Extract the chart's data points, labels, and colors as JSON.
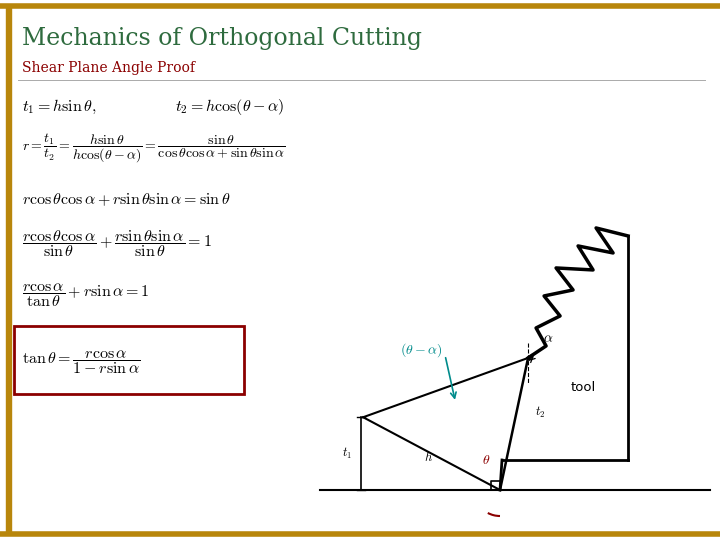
{
  "title": "Mechanics of Orthogonal Cutting",
  "subtitle": "Shear Plane Angle Proof",
  "title_color": "#2E6B3E",
  "subtitle_color": "#8B0000",
  "border_color": "#B8860B",
  "box_color": "#8B0000",
  "bg_color": "#FFFFFF",
  "formula_color": "#000000",
  "teal_color": "#008B8B",
  "maroon_color": "#8B0000",
  "eq1a": "$t_1 = h\\sin\\theta,$",
  "eq1b": "$t_2 = h\\cos(\\theta - \\alpha)$",
  "eq2": "$r = \\dfrac{t_1}{t_2} = \\dfrac{h\\sin\\theta}{h\\cos(\\theta-\\alpha)} = \\dfrac{\\sin\\theta}{\\cos\\theta\\cos\\alpha + \\sin\\theta\\sin\\alpha}$",
  "eq3": "$r\\cos\\theta\\cos\\alpha + r\\sin\\theta\\sin\\alpha = \\sin\\theta$",
  "eq4": "$\\dfrac{r\\cos\\theta\\cos\\alpha}{\\sin\\theta} + \\dfrac{r\\sin\\theta\\sin\\alpha}{\\sin\\theta} = 1$",
  "eq5": "$\\dfrac{r\\cos\\alpha}{\\tan\\theta} + r\\sin\\alpha = 1$",
  "eq6": "$\\tan\\theta = \\dfrac{r\\cos\\alpha}{1 - r\\sin\\alpha}$",
  "label_theta_alpha": "$(\\theta - \\alpha)$",
  "label_theta": "$\\theta$",
  "label_alpha": "$\\alpha$",
  "label_t1": "$t_1$",
  "label_t2": "$t_2$",
  "label_h": "$h$",
  "label_tool": "tool"
}
